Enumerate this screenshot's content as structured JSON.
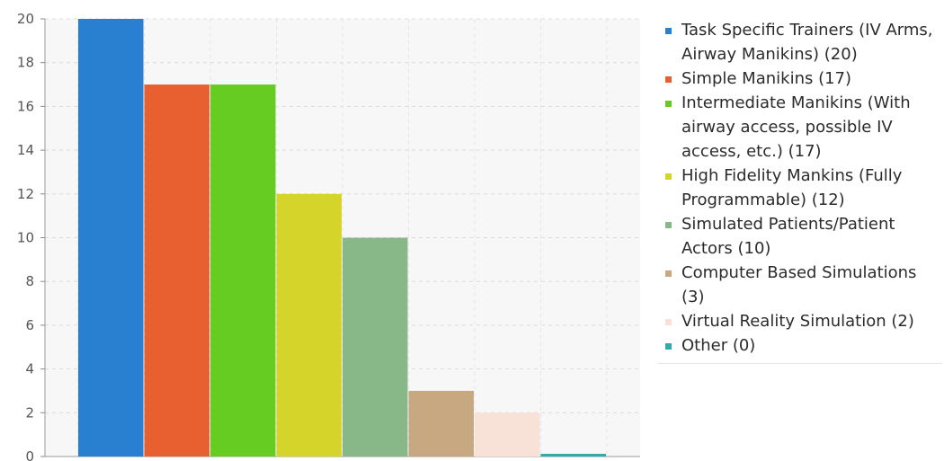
{
  "chart_data": {
    "type": "bar",
    "title": "",
    "xlabel": "",
    "ylabel": "",
    "ylim": [
      0,
      20
    ],
    "yticks": [
      0,
      2,
      4,
      6,
      8,
      10,
      12,
      14,
      16,
      18,
      20
    ],
    "grid": true,
    "legend_position": "right",
    "categories": [
      "Task Specific Trainers (IV Arms, Airway Manikins)",
      "Simple Manikins",
      "Intermediate Manikins (With airway access, possible IV access, etc.)",
      "High Fidelity Mankins (Fully Programmable)",
      "Simulated Patients/Patient Actors",
      "Computer Based Simulations",
      "Virtual Reality Simulation",
      "Other"
    ],
    "values": [
      20,
      17,
      17,
      12,
      10,
      3,
      2,
      0
    ],
    "colors": [
      "#2980d0",
      "#e8602f",
      "#66cc22",
      "#d4d42a",
      "#88b888",
      "#c8a880",
      "#f8e2d8",
      "#33aaaa"
    ],
    "legend": [
      "Task Specific Trainers (IV Arms, Airway Manikins) (20)",
      "Simple Manikins (17)",
      "Intermediate Manikins (With airway access, possible IV access, etc.) (17)",
      "High Fidelity Mankins (Fully Programmable) (12)",
      "Simulated Patients/Patient Actors (10)",
      "Computer Based Simulations (3)",
      "Virtual Reality Simulation (2)",
      "Other (0)"
    ]
  }
}
